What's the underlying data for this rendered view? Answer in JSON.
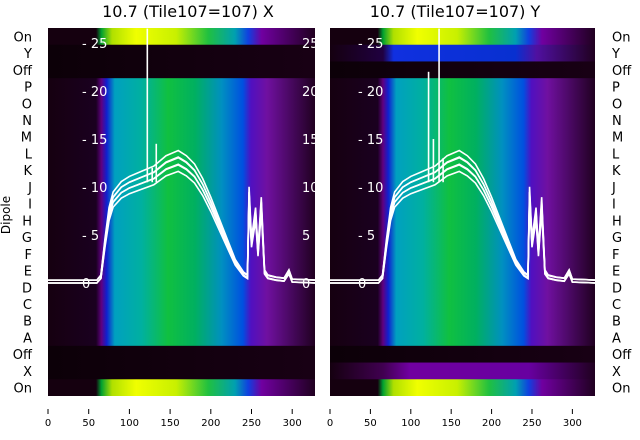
{
  "chart_data": [
    {
      "type": "heatmap",
      "title": "10.7 (Tile107=107) X",
      "ylabel": "Dipole",
      "row_labels": [
        "On",
        "Y",
        "Off",
        "P",
        "O",
        "N",
        "M",
        "L",
        "K",
        "J",
        "I",
        "H",
        "G",
        "F",
        "E",
        "D",
        "C",
        "B",
        "A",
        "Off",
        "X",
        "On"
      ],
      "row_kinds": [
        "on",
        "off",
        "off",
        "dip",
        "dip",
        "dip",
        "dip",
        "dip",
        "dip",
        "dip",
        "dip",
        "dip",
        "dip",
        "dip",
        "dip",
        "dip",
        "dip",
        "dip",
        "dip",
        "off",
        "off",
        "on"
      ],
      "xticks": [
        0,
        50,
        100,
        150,
        200,
        250,
        300
      ],
      "xlim": [
        0,
        328
      ],
      "overlay_yticks": [
        0,
        5,
        10,
        15,
        20,
        25
      ],
      "overlay_ylim": [
        -11.8,
        26.5
      ],
      "line_spikes": [
        [
          122,
          26.5
        ],
        [
          128,
          12
        ],
        [
          133,
          14.5
        ]
      ],
      "line_color": "#ffffff"
    },
    {
      "type": "heatmap",
      "title": "10.7 (Tile107=107) Y",
      "row_labels": [
        "On",
        "Y",
        "Off",
        "P",
        "O",
        "N",
        "M",
        "L",
        "K",
        "J",
        "I",
        "H",
        "G",
        "F",
        "E",
        "D",
        "C",
        "B",
        "A",
        "Off",
        "X",
        "On"
      ],
      "row_kinds": [
        "on",
        "blue",
        "off",
        "dip",
        "dip",
        "dip",
        "dip",
        "dip",
        "dip",
        "dip",
        "dip",
        "dip",
        "dip",
        "dip",
        "dip",
        "dip",
        "dip",
        "dip",
        "dip",
        "off",
        "purple",
        "on"
      ],
      "xticks": [
        0,
        50,
        100,
        150,
        200,
        250,
        300
      ],
      "xlim": [
        0,
        328
      ],
      "overlay_yticks": [
        0,
        5,
        10,
        15,
        20,
        25
      ],
      "overlay_ylim": [
        -11.8,
        26.5
      ],
      "line_spikes": [
        [
          122,
          22
        ],
        [
          128,
          15
        ],
        [
          135,
          26.5
        ],
        [
          140,
          13
        ]
      ],
      "line_color": "#ffffff"
    }
  ],
  "spectrum": {
    "x": [
      0,
      60,
      65,
      70,
      75,
      80,
      90,
      100,
      115,
      130,
      145,
      160,
      170,
      180,
      190,
      200,
      210,
      220,
      230,
      240,
      245,
      247,
      250,
      255,
      258,
      262,
      266,
      270,
      280,
      290,
      296,
      300,
      330
    ],
    "y": [
      0,
      0,
      0.5,
      4,
      7,
      8.5,
      9.5,
      10,
      10.5,
      11,
      12,
      12.5,
      12,
      11.2,
      9.8,
      8,
      6,
      4,
      2,
      0.8,
      0.5,
      9,
      4,
      7,
      3,
      8,
      1,
      0.5,
      0.3,
      0.2,
      1,
      0.1,
      0
    ]
  }
}
